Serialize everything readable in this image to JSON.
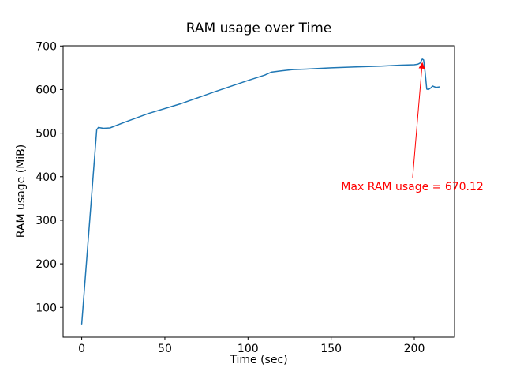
{
  "chart_data": {
    "type": "line",
    "title": "RAM usage over Time",
    "xlabel": "Time (sec)",
    "ylabel": "RAM usage (MiB)",
    "xlim": [
      -11.2,
      224.2
    ],
    "ylim": [
      31.6,
      700.5
    ],
    "xticks": [
      0,
      50,
      100,
      150,
      200
    ],
    "yticks": [
      100,
      200,
      300,
      400,
      500,
      600,
      700
    ],
    "grid": false,
    "legend": "none",
    "axis_color": "#000000",
    "line_color": "#1f77b4",
    "series": [
      {
        "name": "RAM usage",
        "points": [
          [
            0,
            62
          ],
          [
            9,
            508
          ],
          [
            10,
            513
          ],
          [
            13,
            511
          ],
          [
            17,
            512
          ],
          [
            25,
            524
          ],
          [
            40,
            545
          ],
          [
            60,
            568
          ],
          [
            80,
            595
          ],
          [
            100,
            621
          ],
          [
            110,
            633
          ],
          [
            114,
            640
          ],
          [
            120,
            643
          ],
          [
            127,
            646
          ],
          [
            135,
            647
          ],
          [
            150,
            650
          ],
          [
            165,
            652
          ],
          [
            180,
            654
          ],
          [
            192,
            656
          ],
          [
            200,
            657
          ],
          [
            202,
            658
          ],
          [
            203.5,
            661
          ],
          [
            204.8,
            670.12
          ],
          [
            205.6,
            668
          ],
          [
            206.5,
            640
          ],
          [
            207.5,
            601
          ],
          [
            208.5,
            600
          ],
          [
            210,
            604
          ],
          [
            211,
            608
          ],
          [
            213,
            605
          ],
          [
            215,
            606
          ]
        ]
      }
    ],
    "annotation": {
      "text": "Max RAM usage = 670.12",
      "color": "#ff0000",
      "text_xy": [
        156,
        375
      ],
      "arrow_from": [
        199,
        398
      ],
      "arrow_to": [
        204.8,
        661
      ]
    }
  }
}
